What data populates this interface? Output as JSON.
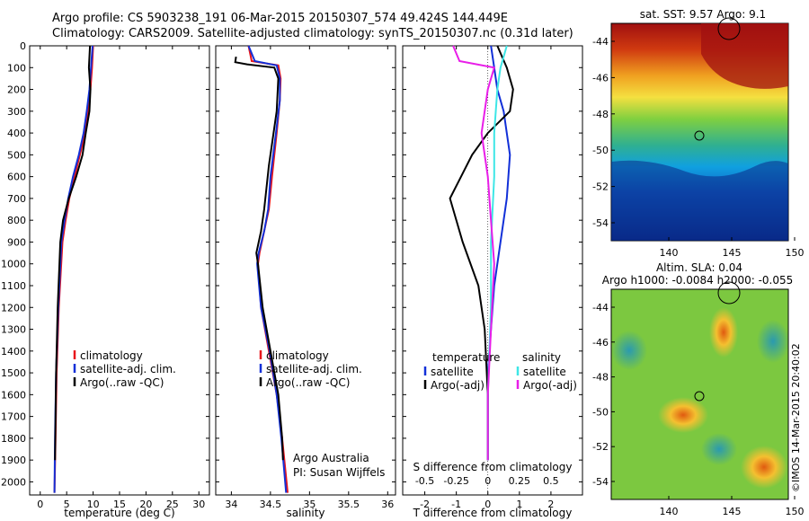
{
  "header": {
    "line1": "Argo profile: CS 5903238_191 06-Mar-2015 20150307_574 49.424S 144.449E",
    "line2": "Climatology: CARS2009. Satellite-adjusted climatology: synTS_20150307.nc (0.31d later)"
  },
  "colors": {
    "climatology": "#e8151b",
    "satellite": "#1230d8",
    "argo": "#000000",
    "sal_satellite": "#3ee6e6",
    "sal_argo": "#e81ee8"
  },
  "chart_data": [
    {
      "id": "temperature",
      "type": "line",
      "xlabel": "temperature (deg C)",
      "xlim": [
        -2,
        32
      ],
      "xticks": [
        0,
        5,
        10,
        15,
        20,
        25,
        30
      ],
      "ylim": [
        2060,
        0
      ],
      "yticks": [
        0,
        100,
        200,
        300,
        400,
        500,
        600,
        700,
        800,
        900,
        1000,
        1100,
        1200,
        1300,
        1400,
        1500,
        1600,
        1700,
        1800,
        1900,
        2000
      ],
      "legend": [
        "climatology",
        "satellite-adj. clim.",
        "Argo(..raw -QC)"
      ],
      "series": [
        {
          "name": "climatology",
          "color_key": "climatology",
          "x": [
            10.0,
            9.8,
            9.5,
            9.0,
            8.5,
            7.5,
            6.5,
            5.5,
            4.8,
            4.2,
            3.5,
            3.1,
            2.9,
            2.7
          ],
          "y": [
            0,
            100,
            200,
            300,
            400,
            500,
            600,
            700,
            800,
            900,
            1200,
            1500,
            1800,
            2050
          ]
        },
        {
          "name": "satellite-adj. clim.",
          "color_key": "satellite",
          "x": [
            9.9,
            9.6,
            9.3,
            8.8,
            8.2,
            7.3,
            6.2,
            5.3,
            4.6,
            4.0,
            3.4,
            3.0,
            2.8,
            2.7
          ],
          "y": [
            0,
            100,
            200,
            300,
            400,
            500,
            600,
            700,
            800,
            900,
            1200,
            1500,
            1800,
            2050
          ]
        },
        {
          "name": "Argo(..raw -QC)",
          "color_key": "argo",
          "x": [
            9.4,
            9.2,
            9.5,
            9.3,
            8.6,
            8.0,
            6.8,
            5.4,
            4.3,
            3.8,
            3.3,
            3.0,
            2.8
          ],
          "y": [
            0,
            100,
            200,
            300,
            400,
            500,
            600,
            700,
            800,
            900,
            1200,
            1500,
            1900
          ]
        }
      ]
    },
    {
      "id": "salinity",
      "type": "line",
      "xlabel": "salinity",
      "xlim": [
        33.8,
        36.1
      ],
      "xticks": [
        34,
        34.5,
        35,
        35.5,
        36
      ],
      "ylim": [
        2060,
        0
      ],
      "legend": [
        "climatology",
        "satellite-adj. clim.",
        "Argo(..raw -QC)"
      ],
      "annotation": [
        "Argo Australia",
        "PI: Susan Wijffels"
      ],
      "series": [
        {
          "name": "climatology",
          "color_key": "climatology",
          "x": [
            34.22,
            34.26,
            34.6,
            34.63,
            34.62,
            34.58,
            34.52,
            34.48,
            34.42,
            34.36,
            34.34,
            34.38,
            34.48,
            34.58,
            34.65,
            34.72
          ],
          "y": [
            0,
            70,
            90,
            150,
            250,
            400,
            600,
            750,
            850,
            950,
            1000,
            1200,
            1400,
            1600,
            1800,
            2050
          ]
        },
        {
          "name": "satellite-adj. clim.",
          "color_key": "satellite",
          "x": [
            34.22,
            34.3,
            34.58,
            34.62,
            34.62,
            34.57,
            34.5,
            34.47,
            34.42,
            34.35,
            34.33,
            34.38,
            34.49,
            34.58,
            34.64,
            34.7
          ],
          "y": [
            0,
            70,
            90,
            150,
            250,
            400,
            600,
            750,
            850,
            950,
            1000,
            1200,
            1400,
            1600,
            1800,
            2050
          ]
        },
        {
          "name": "Argo(..raw -QC)",
          "color_key": "argo",
          "x": [
            34.06,
            34.05,
            34.2,
            34.55,
            34.6,
            34.58,
            34.52,
            34.48,
            34.45,
            34.42,
            34.38,
            34.32,
            34.34,
            34.4,
            34.5,
            34.6,
            34.65,
            34.66
          ],
          "y": [
            50,
            75,
            85,
            100,
            150,
            300,
            450,
            550,
            650,
            750,
            850,
            950,
            1000,
            1200,
            1400,
            1600,
            1800,
            1900
          ]
        }
      ]
    },
    {
      "id": "difference",
      "type": "line",
      "xlabel": "T difference from climatology",
      "xlabel2": "S difference from climatology",
      "xlim": [
        -2.7,
        3
      ],
      "xticks": [
        -2,
        -1,
        0,
        1,
        2
      ],
      "xticks_s": [
        "-0.5",
        "-0.25",
        "0",
        "0.25",
        "0.5"
      ],
      "xticks_s_pos": [
        -2,
        -1,
        0,
        1,
        2
      ],
      "ylim": [
        2060,
        0
      ],
      "legend_left_title": "temperature",
      "legend_right_title": "salinity",
      "legend_left": [
        "satellite",
        "Argo(-adj)"
      ],
      "legend_right": [
        "satellite",
        "Argo(-adj)"
      ],
      "series": [
        {
          "name": "T satellite",
          "color_key": "satellite",
          "x": [
            0.1,
            0.2,
            0.3,
            0.5,
            0.7,
            0.6,
            0.4,
            0.2,
            0.1,
            0.0,
            0.0,
            0.0
          ],
          "y": [
            0,
            100,
            200,
            300,
            500,
            700,
            900,
            1100,
            1300,
            1500,
            1700,
            1900
          ]
        },
        {
          "name": "T Argo(-adj)",
          "color_key": "argo",
          "x": [
            0.3,
            0.6,
            0.8,
            0.7,
            0.0,
            -0.5,
            -1.2,
            -0.8,
            -0.3,
            -0.1,
            0.0,
            0.0
          ],
          "y": [
            0,
            100,
            200,
            300,
            400,
            500,
            700,
            900,
            1100,
            1300,
            1600,
            1900
          ]
        },
        {
          "name": "S satellite",
          "color_key": "sal_satellite",
          "x": [
            0.6,
            0.4,
            0.3,
            0.2,
            0.2,
            0.1,
            0.1,
            0.0,
            0.0
          ],
          "y": [
            0,
            100,
            200,
            400,
            600,
            900,
            1200,
            1600,
            1900
          ]
        },
        {
          "name": "S Argo(-adj)",
          "color_key": "sal_argo",
          "x": [
            -1.1,
            -0.9,
            0.2,
            0.0,
            -0.2,
            0.0,
            0.1,
            0.2,
            0.1,
            0.0,
            0.0
          ],
          "y": [
            0,
            70,
            100,
            200,
            400,
            600,
            800,
            1000,
            1300,
            1600,
            1900
          ]
        }
      ]
    }
  ],
  "maps": [
    {
      "id": "sst-map",
      "title": "sat. SST: 9.57 Argo: 9.1",
      "yticks": [
        "-44",
        "-46",
        "-48",
        "-50",
        "-52",
        "-54"
      ],
      "xticks": [
        "140",
        "145",
        "150"
      ]
    },
    {
      "id": "sla-map",
      "title_line1": "Altim. SLA: 0.04",
      "title_line2": "Argo h1000: -0.0084 h2000: -0.055",
      "yticks": [
        "-44",
        "-46",
        "-48",
        "-50",
        "-52",
        "-54"
      ],
      "xticks": [
        "140",
        "145",
        "150"
      ]
    }
  ],
  "footer": {
    "imos": "©IMOS 14-Mar-2015 20:40:02"
  }
}
